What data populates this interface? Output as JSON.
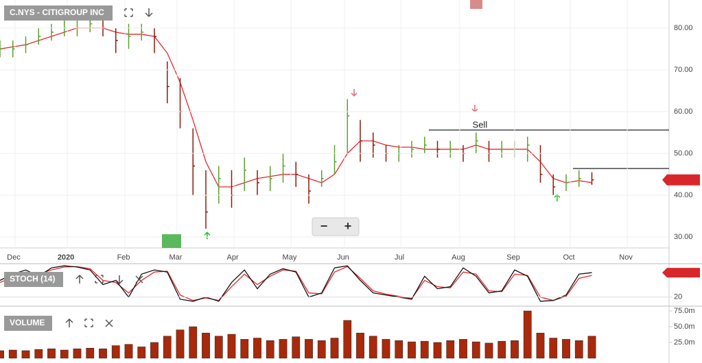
{
  "chart_data": [
    {
      "type": "ohlc",
      "title": "C.NYS - CITIGROUP INC",
      "xlim": [
        0,
        52
      ],
      "xticks": [
        {
          "value": 1.17,
          "label": "Dec"
        },
        {
          "value": 5.23,
          "label": "2020"
        },
        {
          "value": 9.71,
          "label": "Feb"
        },
        {
          "value": 13.76,
          "label": "Mar"
        },
        {
          "value": 18.19,
          "label": "Apr"
        },
        {
          "value": 22.61,
          "label": "May"
        },
        {
          "value": 26.77,
          "label": "Jun"
        },
        {
          "value": 31.15,
          "label": "Jul"
        },
        {
          "value": 35.73,
          "label": "Aug"
        },
        {
          "value": 40,
          "label": "Sep"
        },
        {
          "value": 44.32,
          "label": "Oct"
        },
        {
          "value": 48.75,
          "label": "Nov"
        }
      ],
      "ylim": [
        27.4,
        86.7
      ],
      "yticks": [
        {
          "value": 30,
          "label": "30.00"
        },
        {
          "value": 40,
          "label": "40.00"
        },
        {
          "value": 50,
          "label": "50.00"
        },
        {
          "value": 60,
          "label": "60.00"
        },
        {
          "value": 70,
          "label": "70.00"
        },
        {
          "value": 80,
          "label": "80.00"
        }
      ],
      "grid": true,
      "up_color": "#5aa02c",
      "down_color": "#8b1a0a",
      "high": [
        77,
        77,
        78,
        80,
        81,
        82,
        82,
        83,
        82,
        80,
        81,
        81,
        80,
        72,
        68,
        56,
        46,
        47,
        46,
        49,
        46,
        47,
        50,
        48,
        45,
        46,
        52,
        63,
        58,
        55,
        52,
        52,
        53,
        54,
        53,
        53,
        52,
        55,
        53,
        53,
        53,
        54,
        52,
        45,
        45,
        46,
        45.5
      ],
      "low": [
        73,
        73,
        74,
        76,
        77,
        78,
        78,
        79,
        78,
        74,
        75,
        77,
        74,
        62,
        56,
        40,
        32,
        38,
        37,
        41,
        40,
        41,
        43,
        42,
        38,
        42,
        45,
        50,
        48,
        49,
        48,
        48,
        49,
        50,
        49,
        49,
        48,
        50,
        48,
        49,
        49,
        48,
        43,
        40,
        41,
        42,
        42.5
      ],
      "close": [
        75,
        75,
        76,
        78,
        79,
        80,
        80,
        81,
        80,
        77,
        78,
        79,
        78,
        66,
        60,
        47,
        36,
        44,
        40,
        46,
        43,
        44,
        47,
        45,
        41,
        44,
        48,
        59,
        53,
        52,
        50,
        50,
        51,
        52,
        51,
        51,
        50,
        53,
        50,
        51,
        51,
        52,
        45,
        42,
        43,
        44,
        43.68
      ],
      "sma": {
        "color": "#e8262a",
        "values": [
          75,
          75.5,
          76,
          77,
          78,
          79,
          80,
          80,
          80,
          79,
          78.5,
          78.5,
          78,
          74,
          67,
          58,
          48,
          42,
          42,
          43,
          44,
          44.5,
          45,
          45,
          44,
          43,
          45,
          50,
          53,
          53,
          52,
          51.5,
          51.5,
          51,
          51,
          51,
          51,
          52,
          51,
          51,
          51,
          51,
          48,
          44,
          43,
          43.5,
          43
        ]
      },
      "annotation": {
        "text": "Sell",
        "x": 37.3,
        "y": 56.7
      },
      "hlines": [
        {
          "x0": 33.33,
          "x1": 52,
          "y": 55.6
        },
        {
          "x0": 44.53,
          "x1": 52,
          "y": 46.4
        }
      ],
      "signals": [
        {
          "x": 27.52,
          "y": 64.6,
          "dir": "down",
          "color": "#e0707a"
        },
        {
          "x": 36.9,
          "y": 60.8,
          "dir": "down",
          "color": "#e0707a"
        },
        {
          "x": 16.1,
          "y": 30.3,
          "dir": "up",
          "color": "#2fc42f"
        },
        {
          "x": 43.3,
          "y": 39.3,
          "dir": "up",
          "color": "#2fc42f"
        }
      ],
      "zoom_out": "−",
      "zoom_in": "+"
    },
    {
      "type": "stochastic",
      "title": "STOCH (14)",
      "ylim": [
        0,
        100
      ],
      "yticks": [
        20
      ],
      "k": {
        "color": "#111111",
        "values": [
          60,
          75,
          85,
          70,
          90,
          95,
          92,
          85,
          50,
          60,
          20,
          75,
          85,
          80,
          15,
          10,
          20,
          10,
          55,
          85,
          40,
          75,
          88,
          80,
          20,
          30,
          90,
          95,
          60,
          30,
          25,
          20,
          15,
          70,
          40,
          45,
          90,
          70,
          30,
          35,
          85,
          70,
          10,
          12,
          25,
          75,
          78.57
        ]
      },
      "d": {
        "color": "#e8262a",
        "values": [
          55,
          68,
          80,
          75,
          85,
          92,
          93,
          88,
          60,
          55,
          30,
          60,
          80,
          82,
          25,
          12,
          18,
          12,
          45,
          75,
          50,
          70,
          85,
          82,
          30,
          28,
          80,
          93,
          65,
          35,
          27,
          22,
          17,
          60,
          45,
          42,
          80,
          75,
          35,
          33,
          75,
          72,
          20,
          12,
          22,
          65,
          72
        ]
      }
    },
    {
      "type": "bar",
      "title": "VOLUME",
      "color": "#a8290b",
      "ylim": [
        0,
        81.5
      ],
      "yticks": [
        {
          "value": 25,
          "label": "25.0m"
        },
        {
          "value": 50,
          "label": "50.0m"
        },
        {
          "value": 75,
          "label": "75.0m"
        }
      ],
      "values": [
        12,
        13,
        12,
        14,
        15,
        13,
        15,
        16,
        15,
        20,
        22,
        18,
        25,
        35,
        45,
        50,
        40,
        35,
        38,
        30,
        32,
        28,
        30,
        34,
        30,
        28,
        32,
        60,
        40,
        35,
        30,
        28,
        26,
        27,
        25,
        28,
        30,
        26,
        24,
        27,
        28,
        75,
        40,
        32,
        30,
        28,
        35
      ]
    }
  ]
}
